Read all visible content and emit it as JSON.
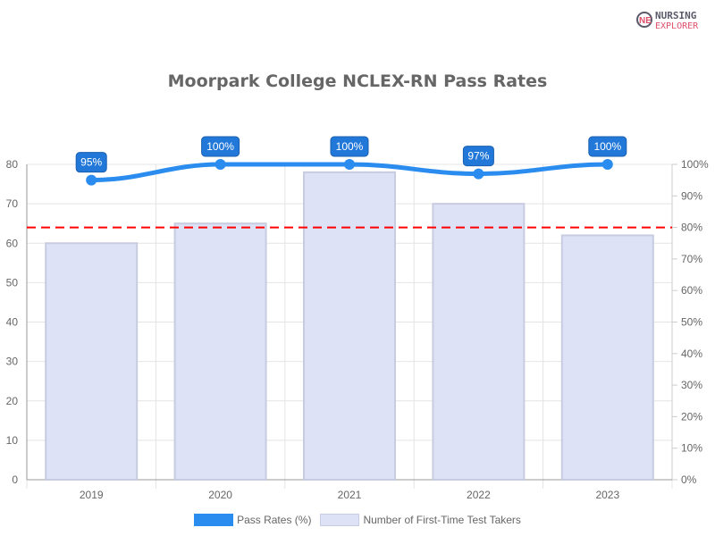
{
  "logo": {
    "line1": "NURSING",
    "line2": "EXPLORER"
  },
  "chart_data": {
    "type": "bar+line",
    "title": "Moorpark College NCLEX-RN Pass Rates",
    "categories": [
      "2019",
      "2020",
      "2021",
      "2022",
      "2023"
    ],
    "series": [
      {
        "name": "Pass Rates (%)",
        "type": "line",
        "axis": "right",
        "values": [
          95,
          100,
          100,
          97,
          100
        ],
        "labels": [
          "95%",
          "100%",
          "100%",
          "97%",
          "100%"
        ],
        "color": "#2b8cf0"
      },
      {
        "name": "Number of First-Time Test Takers",
        "type": "bar",
        "axis": "left",
        "values": [
          60,
          65,
          78,
          70,
          62
        ],
        "color": "#dde2f6"
      }
    ],
    "left_axis": {
      "ylim": [
        0,
        80
      ],
      "ticks": [
        "0",
        "10",
        "20",
        "30",
        "40",
        "50",
        "60",
        "70",
        "80"
      ]
    },
    "right_axis": {
      "ylim": [
        0,
        100
      ],
      "ticks": [
        "0%",
        "10%",
        "20%",
        "30%",
        "40%",
        "50%",
        "60%",
        "70%",
        "80%",
        "90%",
        "100%"
      ]
    },
    "reference_line": {
      "value": 80,
      "axis": "right",
      "color": "#ff0000",
      "style": "dashed"
    },
    "grid": true,
    "legend": "bottom"
  }
}
